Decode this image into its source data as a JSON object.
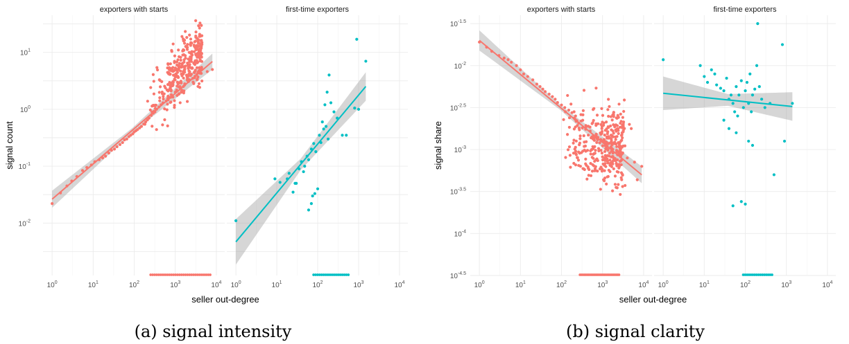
{
  "chart_data": [
    {
      "type": "scatter",
      "caption": "(a) signal intensity",
      "xlabel": "seller out-degree",
      "ylabel": "signal count",
      "xscale": "log10",
      "yscale": "log10",
      "xlim": [
        0.6,
        16000
      ],
      "ylim": [
        0.0012,
        45
      ],
      "x_tick_exponents": [
        0,
        1,
        2,
        3,
        4
      ],
      "y_tick_exponents": [
        -2,
        -1,
        0,
        1
      ],
      "grid": true,
      "legend": "none",
      "facets": [
        {
          "title": "exporters with starts",
          "color": "#F8766D",
          "fit": {
            "slope": 0.62,
            "intercept": -1.58,
            "band_width_log": [
              0.15,
              0.04,
              0.14
            ]
          },
          "points": [
            [
              1,
              0.022
            ],
            [
              1.6,
              0.034
            ],
            [
              2.3,
              0.045
            ],
            [
              3,
              0.055
            ],
            [
              4,
              0.066
            ],
            [
              5.5,
              0.084
            ],
            [
              7,
              0.095
            ],
            [
              9,
              0.105
            ],
            [
              11,
              0.12
            ],
            [
              14,
              0.13
            ],
            [
              17,
              0.14
            ],
            [
              20,
              0.15
            ],
            [
              24,
              0.17
            ],
            [
              28,
              0.19
            ],
            [
              33,
              0.2
            ],
            [
              38,
              0.22
            ],
            [
              45,
              0.24
            ],
            [
              52,
              0.26
            ],
            [
              58,
              0.29
            ],
            [
              66,
              0.3
            ],
            [
              74,
              0.33
            ],
            [
              82,
              0.35
            ],
            [
              92,
              0.37
            ],
            [
              100,
              0.4
            ],
            [
              110,
              0.42
            ],
            [
              120,
              0.44
            ],
            [
              135,
              0.47
            ],
            [
              150,
              0.5
            ],
            [
              170,
              0.55
            ],
            [
              190,
              0.6
            ],
            [
              210,
              0.65
            ],
            [
              230,
              0.7
            ],
            [
              260,
              0.78
            ],
            [
              290,
              0.85
            ],
            [
              320,
              0.9
            ],
            [
              350,
              1.0
            ],
            [
              400,
              1.1
            ],
            [
              450,
              1.2
            ],
            [
              500,
              1.3
            ],
            [
              600,
              1.4
            ],
            [
              700,
              1.6
            ],
            [
              800,
              1.8
            ],
            [
              1000,
              2.0
            ],
            [
              1300,
              2.4
            ],
            [
              1700,
              2.8
            ],
            [
              2200,
              3.3
            ],
            [
              3000,
              3.8
            ],
            [
              4000,
              4.3
            ],
            [
              6000,
              4.6
            ],
            [
              8000,
              5.0
            ]
          ],
          "scatter_params": {
            "seed": 11,
            "n": 340,
            "xlog_range": [
              2.15,
              3.65
            ],
            "center": [
              0.1,
              1.2
            ],
            "spread": 0.55
          },
          "zero_rug": {
            "xlog_range": [
              2.4,
              3.85
            ],
            "n": 30
          }
        },
        {
          "title": "first-time exporters",
          "color": "#00BFC4",
          "fit": {
            "slope": 0.86,
            "intercept": -2.33,
            "band_width_log": [
              0.4,
              0.1,
              0.25
            ]
          },
          "points": [
            [
              1,
              0.011
            ],
            [
              9,
              0.06
            ],
            [
              12,
              0.052
            ],
            [
              18,
              0.06
            ],
            [
              20,
              0.075
            ],
            [
              28,
              0.05
            ],
            [
              35,
              0.09
            ],
            [
              40,
              0.12
            ],
            [
              48,
              0.1
            ],
            [
              55,
              0.15
            ],
            [
              60,
              0.13
            ],
            [
              70,
              0.2
            ],
            [
              80,
              0.25
            ],
            [
              90,
              0.18
            ],
            [
              110,
              0.35
            ],
            [
              130,
              0.6
            ],
            [
              150,
              1.2
            ],
            [
              170,
              2.0
            ],
            [
              190,
              4.0
            ],
            [
              210,
              1.3
            ],
            [
              250,
              0.9
            ],
            [
              300,
              0.7
            ],
            [
              400,
              0.35
            ],
            [
              500,
              0.35
            ],
            [
              800,
              1.05
            ],
            [
              900,
              17.0
            ],
            [
              1000,
              1.0
            ],
            [
              1500,
              7.0
            ],
            [
              60,
              0.017
            ],
            [
              70,
              0.022
            ],
            [
              75,
              0.03
            ],
            [
              85,
              0.033
            ],
            [
              25,
              0.035
            ],
            [
              30,
              0.05
            ],
            [
              45,
              0.08
            ],
            [
              100,
              0.04
            ],
            [
              120,
              0.26
            ],
            [
              140,
              0.45
            ],
            [
              160,
              0.5
            ],
            [
              180,
              0.3
            ]
          ],
          "zero_rug": {
            "xlog_range": [
              1.9,
              2.75
            ],
            "n": 18
          }
        }
      ]
    },
    {
      "type": "scatter",
      "caption": "(b) signal clarity",
      "xlabel": "seller out-degree",
      "ylabel": "signal share",
      "xscale": "log10",
      "yscale": "log10",
      "xlim": [
        0.6,
        16000
      ],
      "ylim_exponent": [
        -4.5,
        -1.4
      ],
      "x_tick_exponents": [
        0,
        1,
        2,
        3,
        4
      ],
      "y_tick_exponents": [
        "-1.5",
        "-2",
        "-2.5",
        "-3",
        "-3.5",
        "-4",
        "-4.5"
      ],
      "grid": true,
      "legend": "none",
      "facets": [
        {
          "title": "exporters with starts",
          "color": "#F8766D",
          "fit": {
            "slope": -0.405,
            "intercept": -1.7,
            "band_width_log": [
              0.12,
              0.03,
              0.1
            ]
          },
          "points": [
            [
              1,
              -1.72
            ],
            [
              1.5,
              -1.78
            ],
            [
              2,
              -1.83
            ],
            [
              3,
              -1.88
            ],
            [
              4,
              -1.91
            ],
            [
              5,
              -1.93
            ],
            [
              6,
              -1.96
            ],
            [
              8,
              -2.0
            ],
            [
              10,
              -2.05
            ],
            [
              12,
              -2.1
            ],
            [
              15,
              -2.13
            ],
            [
              20,
              -2.17
            ],
            [
              25,
              -2.22
            ],
            [
              30,
              -2.25
            ],
            [
              35,
              -2.28
            ],
            [
              40,
              -2.31
            ],
            [
              50,
              -2.34
            ],
            [
              60,
              -2.37
            ],
            [
              70,
              -2.4
            ],
            [
              80,
              -2.44
            ],
            [
              100,
              -2.47
            ],
            [
              120,
              -2.5
            ],
            [
              150,
              -2.53
            ],
            [
              180,
              -2.56
            ],
            [
              220,
              -2.6
            ],
            [
              300,
              -2.66
            ],
            [
              400,
              -2.72
            ],
            [
              500,
              -2.78
            ],
            [
              700,
              -2.84
            ],
            [
              900,
              -2.88
            ],
            [
              1200,
              -2.92
            ],
            [
              1600,
              -2.97
            ],
            [
              2200,
              -3.01
            ],
            [
              3000,
              -3.05
            ],
            [
              4000,
              -3.1
            ],
            [
              6000,
              -3.15
            ],
            [
              9000,
              -3.2
            ],
            [
              5000,
              -2.75
            ],
            [
              4500,
              -2.7
            ],
            [
              7000,
              -3.36
            ]
          ],
          "scatter_params": {
            "seed": 23,
            "n": 360,
            "xlog_range": [
              2.0,
              3.55
            ],
            "center_exp": -2.9,
            "spread": 0.45
          },
          "zero_rug": {
            "xlog_range": [
              2.45,
              3.4
            ],
            "n": 28
          }
        },
        {
          "title": "first-time exporters",
          "color": "#00BFC4",
          "fit": {
            "slope": -0.05,
            "intercept": -2.33,
            "band_width_log": [
              0.2,
              0.07,
              0.17
            ]
          },
          "points": [
            [
              1,
              -1.93
            ],
            [
              8,
              -2.0
            ],
            [
              10,
              -2.13
            ],
            [
              12,
              -2.2
            ],
            [
              15,
              -2.05
            ],
            [
              18,
              -2.1
            ],
            [
              20,
              -2.23
            ],
            [
              25,
              -2.27
            ],
            [
              30,
              -2.3
            ],
            [
              35,
              -2.15
            ],
            [
              40,
              -2.4
            ],
            [
              45,
              -2.35
            ],
            [
              50,
              -2.45
            ],
            [
              55,
              -2.55
            ],
            [
              60,
              -2.25
            ],
            [
              65,
              -2.6
            ],
            [
              70,
              -2.35
            ],
            [
              80,
              -2.18
            ],
            [
              90,
              -2.5
            ],
            [
              100,
              -2.3
            ],
            [
              110,
              -2.2
            ],
            [
              120,
              -2.45
            ],
            [
              130,
              -2.1
            ],
            [
              140,
              -2.55
            ],
            [
              150,
              -2.35
            ],
            [
              170,
              -2.28
            ],
            [
              190,
              -2.0
            ],
            [
              200,
              -1.5
            ],
            [
              220,
              -2.25
            ],
            [
              250,
              -2.4
            ],
            [
              300,
              -2.5
            ],
            [
              400,
              -2.45
            ],
            [
              500,
              -3.3
            ],
            [
              800,
              -1.75
            ],
            [
              900,
              -2.9
            ],
            [
              1400,
              -2.45
            ],
            [
              50,
              -3.67
            ],
            [
              80,
              -3.62
            ],
            [
              100,
              -3.65
            ],
            [
              120,
              -2.9
            ],
            [
              150,
              -2.95
            ],
            [
              60,
              -2.8
            ],
            [
              30,
              -2.65
            ],
            [
              40,
              -2.75
            ]
          ],
          "zero_rug": {
            "xlog_range": [
              1.95,
              2.65
            ],
            "n": 16
          }
        }
      ]
    }
  ]
}
